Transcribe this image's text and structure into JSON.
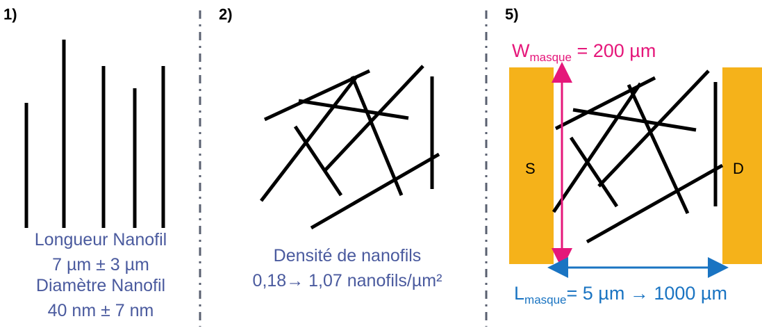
{
  "panels": [
    {
      "number": "1)",
      "caption_lines": [
        "Longueur Nanofil",
        "7 µm ± 3 µm",
        "Diamètre Nanofil",
        "40 nm ± 7 nm"
      ]
    },
    {
      "number": "2)",
      "caption_lines": [
        "Densité de nanofils",
        "0,18→ 1,07 nanofils/µm²"
      ]
    },
    {
      "number": "5)",
      "source_label": "S",
      "drain_label": "D",
      "width_symbol": "W",
      "width_subscript": "masque",
      "width_value": " = 200 µm",
      "length_symbol": "L",
      "length_subscript": "masque",
      "length_value": "= 5 µm → 1000 µm"
    }
  ],
  "colors": {
    "electrode": "#f5b21a",
    "width_arrow": "#e5177a",
    "length_arrow": "#1a74c2",
    "caption": "#4a5a9e",
    "divider": "#5a6070",
    "nanowire": "#000000"
  }
}
